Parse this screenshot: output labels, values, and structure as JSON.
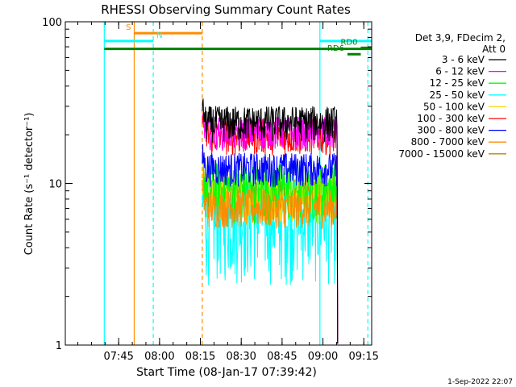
{
  "chart_data": {
    "type": "line",
    "title": "RHESSI Observing Summary Count Rates",
    "xlabel": "Start Time (08-Jan-17 07:39:42)",
    "ylabel": "Count Rate (s⁻¹ detector⁻¹)",
    "yscale": "log",
    "ylim": [
      1,
      100
    ],
    "xlim_minutes": [
      -14.3,
      98.2
    ],
    "x_tick_labels": [
      "07:45",
      "08:00",
      "08:15",
      "08:30",
      "08:45",
      "09:00",
      "09:15"
    ],
    "x_tick_minutes": [
      5.3,
      20.3,
      35.3,
      50.3,
      65.3,
      80.3,
      95.3
    ],
    "y_tick_labels": [
      "1",
      "10",
      "100"
    ],
    "y_tick_values": [
      1,
      10,
      100
    ],
    "legend_header": [
      "Det 3,9, FDecim 2,",
      "Att 0"
    ],
    "legend_position": "right",
    "series": [
      {
        "name": "3 - 6 keV",
        "color": "#000000",
        "level": 24,
        "amp": 0.16
      },
      {
        "name": "6 - 12 keV",
        "color": "#ff00ff",
        "level": 21,
        "amp": 0.15
      },
      {
        "name": "12 - 25 keV",
        "color": "#00ff00",
        "level": 9.5,
        "amp": 0.26
      },
      {
        "name": "25 - 50 keV",
        "color": "#00ffff",
        "level": 6.4,
        "amp": 0.4
      },
      {
        "name": "50 - 100 keV",
        "color": "#ffd700",
        "level": 8.7,
        "amp": 0.22
      },
      {
        "name": "100 - 300 keV",
        "color": "#ff0000",
        "level": 20,
        "amp": 0.16
      },
      {
        "name": "300 - 800 keV",
        "color": "#0000ff",
        "level": 12.5,
        "amp": 0.15
      },
      {
        "name": "800 - 7000 keV",
        "color": "#ff8c00",
        "level": 7.2,
        "amp": 0.17
      },
      {
        "name": "7000 - 15000 keV",
        "color": "#b8860b",
        "level": 8.4,
        "amp": 0.18
      }
    ],
    "data_interval_minutes": [
      36.0,
      85.5
    ],
    "count_rate_series_order": [
      "7000 - 15000 keV",
      "25 - 50 keV",
      "50 - 100 keV",
      "12 - 25 keV",
      "800 - 7000 keV",
      "300 - 800 keV",
      "100 - 300 keV",
      "6 - 12 keV",
      "3 - 6 keV"
    ],
    "vertical_markers": [
      {
        "minute": 0.0,
        "color": "#00ffff",
        "style": "solid"
      },
      {
        "minute": 11.0,
        "color": "#ff8c00",
        "style": "solid"
      },
      {
        "minute": 18.0,
        "color": "#00ffff",
        "style": "dashed"
      },
      {
        "minute": 36.0,
        "color": "#ff8c00",
        "style": "dashed"
      },
      {
        "minute": 79.2,
        "color": "#00ffff",
        "style": "solid"
      },
      {
        "minute": 96.8,
        "color": "#00ffff",
        "style": "dashed"
      }
    ],
    "flag_bars": [
      {
        "label": "S",
        "color": "#ff8c00",
        "start": 11.0,
        "end": 36.0,
        "value": 85,
        "label_side": "left"
      },
      {
        "label": "N",
        "color": "#00ffff",
        "start": 0.0,
        "end": 18.0,
        "value": 76,
        "label_side": "right"
      },
      {
        "label": "N",
        "color": "#00ffff",
        "start": 79.2,
        "end": 98.2,
        "value": 76,
        "label_side": "none"
      },
      {
        "label": "",
        "color": "#008000",
        "start": 0.0,
        "end": 98.2,
        "value": 68,
        "label_side": "none"
      },
      {
        "label": "RD0",
        "color": "#008000",
        "start": 94.2,
        "end": 98.0,
        "value": 69,
        "label_side": "left"
      },
      {
        "label": "RD6",
        "color": "#008000",
        "start": 89.3,
        "end": 94.2,
        "value": 63,
        "label_side": "left"
      }
    ],
    "footer_date": "1-Sep-2022 22:07"
  }
}
